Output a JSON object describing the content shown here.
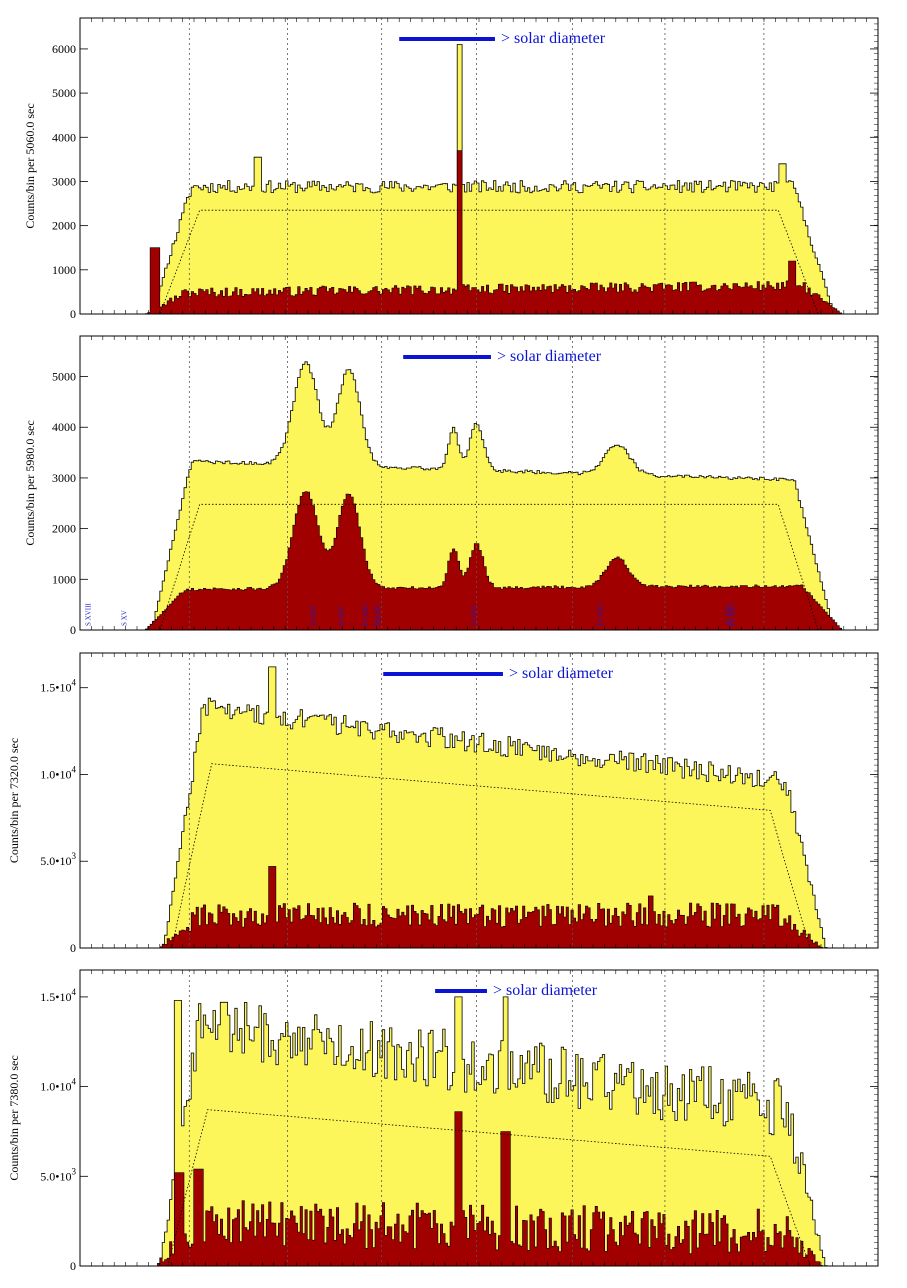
{
  "colors": {
    "total_fill": "#fcf65a",
    "flare_fill": "#a00000",
    "outline": "#000000",
    "legend_bar": "#0a14d2",
    "legend_text": "#0a14d2",
    "line_label": "#1a1ac8"
  },
  "chart_data": [
    {
      "type": "area",
      "title": "",
      "ylabel": "Counts/bin per  5060.0 sec",
      "xlabel": "",
      "ylim": [
        0,
        6700
      ],
      "yticks": [
        {
          "v": 0,
          "t": "0"
        },
        {
          "v": 1000,
          "t": "1000"
        },
        {
          "v": 2000,
          "t": "2000"
        },
        {
          "v": 3000,
          "t": "3000"
        },
        {
          "v": 4000,
          "t": "4000"
        },
        {
          "v": 5000,
          "t": "5000"
        },
        {
          "v": 6000,
          "t": "6000"
        }
      ],
      "grid": "vertical dotted",
      "legend": {
        "label": "> solar diameter",
        "bar_start": 0.4,
        "bar_end": 0.52
      },
      "series": [
        {
          "name": "total counts",
          "shape": "flat",
          "plateau": 2880,
          "slope": 0,
          "noise": 140,
          "edges": [
            0.09,
            0.945
          ],
          "spikes": [
            {
              "x": 0.476,
              "v": 6100,
              "w": 0.004
            },
            {
              "x": 0.223,
              "v": 3550,
              "w": 0.004
            },
            {
              "x": 0.88,
              "v": 3400,
              "w": 0.004
            }
          ]
        },
        {
          "name": "flare component",
          "shape": "flat",
          "plateau": 520,
          "slope": 0.4,
          "noise": 110,
          "edges": [
            0.082,
            0.955
          ],
          "spikes": [
            {
              "x": 0.476,
              "v": 3700,
              "w": 0.004
            },
            {
              "x": 0.095,
              "v": 1500,
              "w": 0.006
            },
            {
              "x": 0.893,
              "v": 1200,
              "w": 0.004
            }
          ]
        },
        {
          "name": "model",
          "shape": "dotted",
          "plateau": 2350,
          "slope": 0
        }
      ],
      "line_labels": []
    },
    {
      "type": "area",
      "title": "",
      "ylabel": "Counts/bin per  5980.0 sec",
      "xlabel": "",
      "ylim": [
        0,
        5800
      ],
      "yticks": [
        {
          "v": 0,
          "t": "0"
        },
        {
          "v": 1000,
          "t": "1000"
        },
        {
          "v": 2000,
          "t": "2000"
        },
        {
          "v": 3000,
          "t": "3000"
        },
        {
          "v": 4000,
          "t": "4000"
        },
        {
          "v": 5000,
          "t": "5000"
        }
      ],
      "grid": "vertical dotted",
      "legend": {
        "label": "> solar diameter",
        "bar_start": 0.405,
        "bar_end": 0.515
      },
      "series": [
        {
          "name": "total counts",
          "shape": "flat",
          "plateau": 3250,
          "slope": -0.15,
          "noise": 35,
          "edges": [
            0.09,
            0.945
          ],
          "peaks": [
            {
              "x": 0.283,
              "v": 5250,
              "w": 0.022
            },
            {
              "x": 0.337,
              "v": 5150,
              "w": 0.02
            },
            {
              "x": 0.468,
              "v": 4050,
              "w": 0.009
            },
            {
              "x": 0.497,
              "v": 4150,
              "w": 0.012
            },
            {
              "x": 0.673,
              "v": 3850,
              "w": 0.022
            }
          ]
        },
        {
          "name": "flare component",
          "shape": "flat",
          "plateau": 820,
          "slope": 0.1,
          "noise": 30,
          "edges": [
            0.082,
            0.955
          ],
          "peaks": [
            {
              "x": 0.283,
              "v": 2750,
              "w": 0.022
            },
            {
              "x": 0.337,
              "v": 2700,
              "w": 0.02
            },
            {
              "x": 0.468,
              "v": 1600,
              "w": 0.009
            },
            {
              "x": 0.497,
              "v": 1700,
              "w": 0.012
            },
            {
              "x": 0.673,
              "v": 1400,
              "w": 0.02
            },
            {
              "x": 0.875,
              "v": 800,
              "w": 0.02
            }
          ]
        },
        {
          "name": "model",
          "shape": "dotted",
          "plateau": 2480,
          "slope": 0
        }
      ],
      "line_labels": [
        "S XVIII",
        "S XV",
        "Si XIII",
        "Si XIV",
        "Fe XXV",
        "Mg XII",
        "Si XIII",
        "Fe XXV",
        "Al XIII",
        "Fe XXV"
      ]
    },
    {
      "type": "area",
      "title": "",
      "ylabel": "Counts/bin per  7320.0 sec",
      "xlabel": "",
      "ylim": [
        0,
        17000
      ],
      "yticks": [
        {
          "v": 0,
          "t": "0"
        },
        {
          "v": 5000,
          "t": "5.0•10",
          "exp": "3"
        },
        {
          "v": 10000,
          "t": "1.0•10",
          "exp": "4"
        },
        {
          "v": 15000,
          "t": "1.5•10",
          "exp": "4"
        }
      ],
      "grid": "vertical dotted",
      "legend": {
        "label": "> solar diameter",
        "bar_start": 0.38,
        "bar_end": 0.53
      },
      "series": [
        {
          "name": "total counts",
          "shape": "slope",
          "plateau": 13000,
          "slope": -0.45,
          "noise": 600,
          "edges": [
            0.105,
            0.935
          ],
          "spikes": [
            {
              "x": 0.24,
              "v": 16200,
              "w": 0.004
            },
            {
              "x": 0.715,
              "v": 10800,
              "w": 0.004
            }
          ]
        },
        {
          "name": "flare component",
          "shape": "flat",
          "plateau": 1900,
          "slope": 0,
          "noise": 700,
          "edges": [
            0.1,
            0.93
          ],
          "spikes": [
            {
              "x": 0.24,
              "v": 4700,
              "w": 0.004
            },
            {
              "x": 0.715,
              "v": 3000,
              "w": 0.004
            }
          ]
        },
        {
          "name": "model",
          "shape": "dotted",
          "plateau": 10100,
          "slope": -0.38
        }
      ],
      "line_labels": []
    },
    {
      "type": "area",
      "title": "",
      "ylabel": "Counts/bin per  7380.0 sec",
      "xlabel": "",
      "ylim": [
        0,
        16500
      ],
      "yticks": [
        {
          "v": 0,
          "t": "0"
        },
        {
          "v": 5000,
          "t": "5.0•10",
          "exp": "3"
        },
        {
          "v": 10000,
          "t": "1.0•10",
          "exp": "4"
        },
        {
          "v": 15000,
          "t": "1.5•10",
          "exp": "4"
        }
      ],
      "grid": "vertical dotted",
      "legend": {
        "label": "> solar diameter",
        "bar_start": 0.445,
        "bar_end": 0.51
      },
      "series": [
        {
          "name": "total counts",
          "shape": "slope",
          "plateau": 12500,
          "slope": -0.5,
          "noise": 1700,
          "edges": [
            0.1,
            0.935
          ],
          "spikes": [
            {
              "x": 0.122,
              "v": 14800,
              "w": 0.004
            },
            {
              "x": 0.18,
              "v": 14700,
              "w": 0.004
            },
            {
              "x": 0.475,
              "v": 15000,
              "w": 0.004
            },
            {
              "x": 0.533,
              "v": 15000,
              "w": 0.004
            }
          ]
        },
        {
          "name": "flare component",
          "shape": "flat",
          "plateau": 2300,
          "slope": -0.3,
          "noise": 1300,
          "edges": [
            0.095,
            0.93
          ],
          "spikes": [
            {
              "x": 0.475,
              "v": 8600,
              "w": 0.004
            },
            {
              "x": 0.533,
              "v": 7500,
              "w": 0.006
            },
            {
              "x": 0.123,
              "v": 5200,
              "w": 0.006
            },
            {
              "x": 0.148,
              "v": 5400,
              "w": 0.006
            }
          ]
        },
        {
          "name": "model",
          "shape": "dotted",
          "plateau": 8200,
          "slope": -0.45
        }
      ],
      "line_labels": []
    }
  ]
}
